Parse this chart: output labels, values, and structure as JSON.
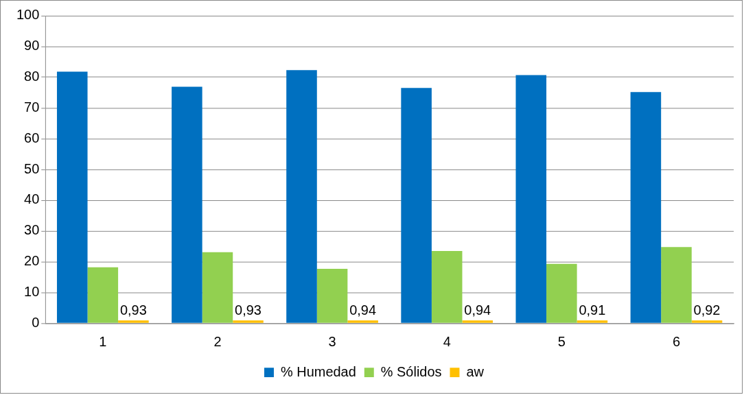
{
  "chart_data": {
    "type": "bar",
    "categories": [
      "1",
      "2",
      "3",
      "4",
      "5",
      "6"
    ],
    "series": [
      {
        "name": "% Humedad",
        "color": "#0070c0",
        "values": [
          81.8,
          76.9,
          82.3,
          76.5,
          80.7,
          75.2
        ]
      },
      {
        "name": "% Sólidos",
        "color": "#92d050",
        "values": [
          18.2,
          23.1,
          17.7,
          23.5,
          19.3,
          24.8
        ]
      },
      {
        "name": "aw",
        "color": "#ffc000",
        "values": [
          0.93,
          0.93,
          0.94,
          0.94,
          0.91,
          0.92
        ],
        "value_labels": [
          "0,93",
          "0,93",
          "0,94",
          "0,94",
          "0,91",
          "0,92"
        ]
      }
    ],
    "ylim": [
      0,
      100
    ],
    "yticks": [
      0,
      10,
      20,
      30,
      40,
      50,
      60,
      70,
      80,
      90,
      100
    ],
    "grid": "y",
    "legend": "bottom"
  }
}
